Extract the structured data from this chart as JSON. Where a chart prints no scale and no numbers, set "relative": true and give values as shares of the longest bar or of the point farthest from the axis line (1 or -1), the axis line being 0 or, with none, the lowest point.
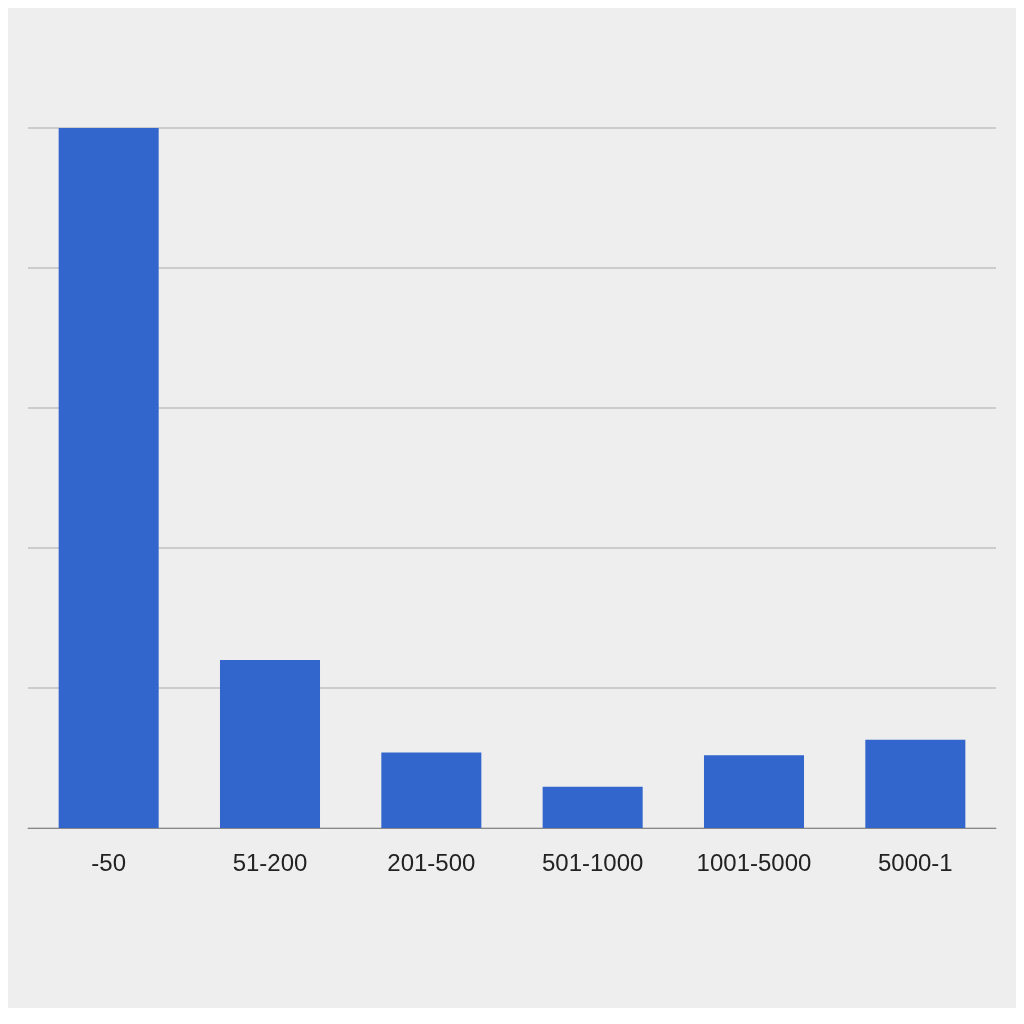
{
  "chart_data": {
    "type": "bar",
    "categories": [
      "-50",
      "51-200",
      "201-500",
      "501-1000",
      "1001-5000",
      "5000-1"
    ],
    "values": [
      1,
      0.24,
      0.108,
      0.059,
      0.104,
      0.126
    ],
    "color": "#3366cc",
    "relative": true,
    "grid": "y"
  }
}
